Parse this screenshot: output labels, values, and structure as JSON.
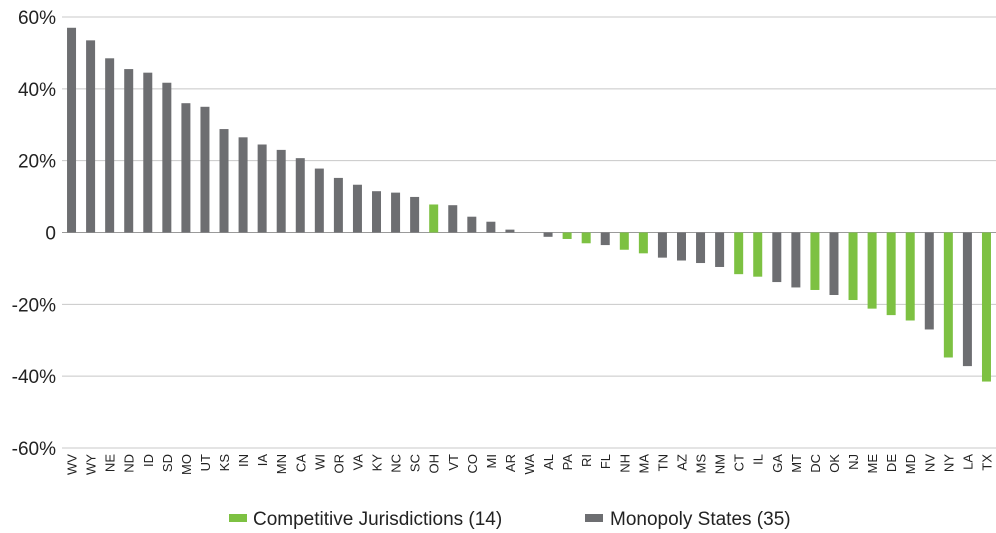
{
  "chart_data": {
    "type": "bar",
    "categories": [
      "WV",
      "WY",
      "NE",
      "ND",
      "ID",
      "SD",
      "MO",
      "UT",
      "KS",
      "IN",
      "IA",
      "MN",
      "CA",
      "WI",
      "OR",
      "VA",
      "KY",
      "NC",
      "SC",
      "OH",
      "VT",
      "CO",
      "MI",
      "AR",
      "WA",
      "AL",
      "PA",
      "RI",
      "FL",
      "NH",
      "MA",
      "TN",
      "AZ",
      "MS",
      "NM",
      "CT",
      "IL",
      "GA",
      "MT",
      "DC",
      "OK",
      "NJ",
      "ME",
      "DE",
      "MD",
      "NV",
      "NY",
      "LA",
      "TX"
    ],
    "values": [
      57,
      53.5,
      48.5,
      45.5,
      44.5,
      41.7,
      36,
      35,
      28.8,
      26.5,
      24.5,
      23,
      20.7,
      17.8,
      15.2,
      13.3,
      11.5,
      11.1,
      9.9,
      7.8,
      7.6,
      4.4,
      3,
      0.8,
      0,
      -1.2,
      -1.8,
      -3,
      -3.5,
      -4.8,
      -5.8,
      -7,
      -7.8,
      -8.5,
      -9.6,
      -11.6,
      -12.3,
      -13.8,
      -15.3,
      -16,
      -17.4,
      -18.8,
      -21.2,
      -23,
      -24.5,
      -27,
      -34.8,
      -37.2,
      -41.5
    ],
    "groups": [
      "m",
      "m",
      "m",
      "m",
      "m",
      "m",
      "m",
      "m",
      "m",
      "m",
      "m",
      "m",
      "m",
      "m",
      "m",
      "m",
      "m",
      "m",
      "m",
      "c",
      "m",
      "m",
      "m",
      "m",
      "m",
      "m",
      "c",
      "c",
      "m",
      "c",
      "c",
      "m",
      "m",
      "m",
      "m",
      "c",
      "c",
      "m",
      "m",
      "c",
      "m",
      "c",
      "c",
      "c",
      "c",
      "m",
      "c",
      "m",
      "c"
    ],
    "series": [
      {
        "name": "Competitive Jurisdictions (14)",
        "key": "c",
        "color": "#7dc142"
      },
      {
        "name": "Monopoly States (35)",
        "key": "m",
        "color": "#6d6e71"
      }
    ],
    "ylim": [
      -60,
      60
    ],
    "yticks": [
      60,
      40,
      20,
      0,
      -20,
      -40,
      -60
    ],
    "ytick_labels": [
      "60%",
      "40%",
      "20%",
      "0",
      "-20%",
      "-40%",
      "-60%"
    ],
    "grid": true,
    "legend_position": "bottom-center",
    "title": "",
    "xlabel": "",
    "ylabel": ""
  }
}
